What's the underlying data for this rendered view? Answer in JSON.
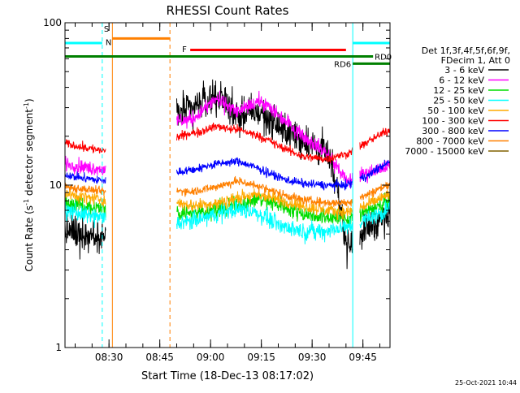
{
  "chart_data": {
    "type": "line",
    "title": "RHESSI Count Rates",
    "xlabel": "Start Time (18-Dec-13 08:17:02)",
    "ylabel_main": "Count Rate (s",
    "ylabel_sup1": "-1",
    "ylabel_mid": " detector segment",
    "ylabel_sup2": "-1",
    "ylabel_end": ")",
    "y_scale": "log",
    "ylim": [
      1,
      100
    ],
    "xlim_minutes": [
      0,
      96
    ],
    "y_ticks": [
      {
        "value": 1,
        "label": "1"
      },
      {
        "value": 10,
        "label": "10"
      },
      {
        "value": 100,
        "label": "100"
      }
    ],
    "x_ticks": [
      {
        "minutes": 13,
        "label": "08:30"
      },
      {
        "minutes": 28,
        "label": "08:45"
      },
      {
        "minutes": 43,
        "label": "09:00"
      },
      {
        "minutes": 58,
        "label": "09:15"
      },
      {
        "minutes": 73,
        "label": "09:30"
      },
      {
        "minutes": 88,
        "label": "09:45"
      }
    ],
    "footer_date": "25-Oct-2021 10:44",
    "legend_header": [
      "Det 1f,3f,4f,5f,6f,9f,",
      "FDecim 1, Att 0"
    ],
    "series": [
      {
        "name": "3 - 6 keV",
        "color": "#000000",
        "base": [
          5.2,
          5.0,
          4.8,
          25,
          24,
          27,
          30,
          36,
          27,
          28,
          22,
          19,
          16,
          4.2,
          5.6,
          6.6
        ],
        "noise": 0.16
      },
      {
        "name": "6 - 12 keV",
        "color": "#ff00ff",
        "base": [
          13.5,
          12.8,
          12.5,
          24,
          22,
          24,
          26,
          34,
          28,
          33,
          26,
          20,
          16,
          10.5,
          12.0,
          13.0
        ],
        "noise": 0.07
      },
      {
        "name": "12 - 25 keV",
        "color": "#00dd00",
        "base": [
          7.8,
          7.4,
          7.0,
          8.0,
          7.2,
          6.8,
          6.8,
          7.0,
          7.6,
          8.2,
          7.5,
          6.7,
          6.4,
          6.2,
          7.0,
          8.0
        ],
        "noise": 0.08
      },
      {
        "name": "25 - 50 keV",
        "color": "#00ffff",
        "base": [
          7.0,
          6.5,
          6.2,
          7.0,
          6.3,
          5.8,
          6.0,
          6.6,
          7.2,
          6.6,
          5.6,
          5.2,
          5.2,
          5.5,
          6.2,
          7.2
        ],
        "noise": 0.08
      },
      {
        "name": "50 - 100 keV",
        "color": "#ffaa00",
        "base": [
          8.8,
          8.4,
          8.0,
          9.0,
          8.3,
          7.7,
          7.5,
          7.7,
          8.4,
          8.7,
          8.0,
          7.4,
          7.0,
          6.8,
          7.6,
          8.8
        ],
        "noise": 0.06
      },
      {
        "name": "100 - 300 keV",
        "color": "#ff0000",
        "base": [
          18.0,
          17.0,
          16.0,
          21.0,
          20.0,
          19.5,
          21.0,
          23.0,
          22.0,
          20.0,
          17.0,
          15.0,
          14.5,
          15.5,
          18.5,
          22.0
        ],
        "noise": 0.04
      },
      {
        "name": "300 - 800 keV",
        "color": "#0000ff",
        "base": [
          11.5,
          11.0,
          10.5,
          12.8,
          12.3,
          12.0,
          12.5,
          13.5,
          14.0,
          12.5,
          11.0,
          10.2,
          10.0,
          10.0,
          11.5,
          14.0
        ],
        "noise": 0.04
      },
      {
        "name": "800 - 7000 keV",
        "color": "#ff8000",
        "base": [
          9.8,
          9.4,
          9.0,
          10.2,
          9.6,
          9.2,
          9.2,
          9.8,
          10.6,
          9.8,
          8.8,
          8.1,
          7.8,
          7.8,
          8.8,
          10.2
        ],
        "noise": 0.04
      },
      {
        "name": "7000 - 15000 keV",
        "color": "#806000",
        "base": [],
        "noise": 0.0
      }
    ],
    "gaps_minutes": [
      [
        12,
        33
      ],
      [
        85,
        87
      ]
    ],
    "annotations": {
      "s_label": "S",
      "n_label": "N",
      "f_label": "F",
      "rd0_label": "RD0",
      "rd6_label": "RD6"
    },
    "bars": [
      {
        "id": "saa-bar-1",
        "color": "#00ffff",
        "start_min": 0,
        "end_min": 11,
        "value": 75
      },
      {
        "id": "saa-bar-2",
        "color": "#00ffff",
        "start_min": 85,
        "end_min": 96,
        "value": 75
      },
      {
        "id": "night-bar",
        "color": "#ff8000",
        "start_min": 14,
        "end_min": 31,
        "value": 80
      },
      {
        "id": "flare-bar",
        "color": "#ff0000",
        "start_min": 37,
        "end_min": 83,
        "value": 68
      },
      {
        "id": "rd0-bar",
        "color": "#008000",
        "start_min": 0,
        "end_min": 91,
        "value": 62
      },
      {
        "id": "rd6-bar",
        "color": "#008000",
        "start_min": 85,
        "end_min": 96,
        "value": 56
      }
    ],
    "vlines": [
      {
        "id": "vline-cyan-solid-left",
        "color": "#00ffff",
        "minutes": 0,
        "dashed": false
      },
      {
        "id": "vline-cyan-dashed-1",
        "color": "#00ffff",
        "minutes": 11,
        "dashed": true
      },
      {
        "id": "vline-orange-solid",
        "color": "#ff8000",
        "minutes": 14,
        "dashed": false
      },
      {
        "id": "vline-orange-dashed",
        "color": "#ff8000",
        "minutes": 31,
        "dashed": true
      },
      {
        "id": "vline-cyan-solid-2",
        "color": "#00ffff",
        "minutes": 85,
        "dashed": false
      },
      {
        "id": "vline-cyan-dashed-2",
        "color": "#00ffff",
        "minutes": 96,
        "dashed": true
      }
    ]
  }
}
